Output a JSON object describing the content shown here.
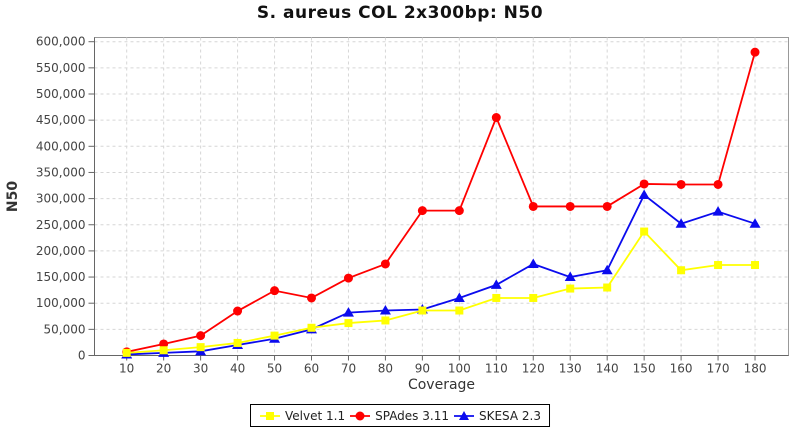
{
  "title": "S. aureus COL 2x300bp: N50",
  "chart_data": {
    "type": "line",
    "title": "S. aureus COL 2x300bp: N50",
    "xlabel": "Coverage",
    "ylabel": "N50",
    "x": [
      10,
      20,
      30,
      40,
      50,
      60,
      70,
      80,
      90,
      100,
      110,
      120,
      130,
      140,
      150,
      160,
      170,
      180
    ],
    "xticks": [
      "10",
      "20",
      "30",
      "40",
      "50",
      "60",
      "70",
      "80",
      "90",
      "100",
      "110",
      "120",
      "130",
      "140",
      "150",
      "160",
      "170",
      "180"
    ],
    "ylim": [
      0,
      600000
    ],
    "ytick_step": 50000,
    "yticks": [
      0,
      50000,
      100000,
      150000,
      200000,
      250000,
      300000,
      350000,
      400000,
      450000,
      500000,
      550000,
      600000
    ],
    "grid": true,
    "legend_position": "bottom",
    "series": [
      {
        "name": "Velvet 1.1",
        "color": "#ffff00",
        "marker": "square",
        "values": [
          5000,
          10000,
          16000,
          24000,
          38000,
          53000,
          62000,
          67000,
          86000,
          86000,
          110000,
          110000,
          128000,
          130000,
          237000,
          163000,
          173000,
          173000
        ]
      },
      {
        "name": "SPAdes 3.11",
        "color": "#ff0000",
        "marker": "circle",
        "values": [
          7000,
          22000,
          38000,
          85000,
          124000,
          110000,
          148000,
          175000,
          277000,
          277000,
          455000,
          285000,
          285000,
          285000,
          328000,
          327000,
          327000,
          580000
        ]
      },
      {
        "name": "SKESA 2.3",
        "color": "#0b0bee",
        "marker": "triangle",
        "values": [
          2000,
          5000,
          8000,
          20000,
          32000,
          50000,
          82000,
          86000,
          88000,
          110000,
          135000,
          175000,
          150000,
          163000,
          307000,
          252000,
          275000,
          252000
        ]
      }
    ],
    "style": {
      "grid_color": "#d6d6d6",
      "plot_border_color": "#999999",
      "axis_line_color": "#666666",
      "tick_label_color": "#444444",
      "axis_label_color": "#333333",
      "title_color": "#111111"
    }
  }
}
